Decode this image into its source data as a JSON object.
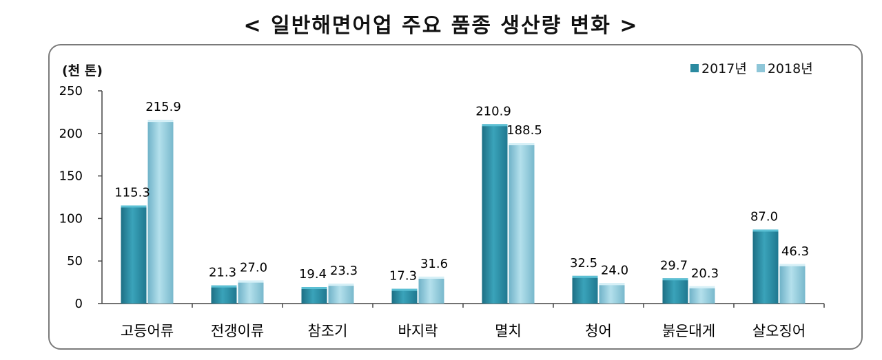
{
  "chart_data": {
    "type": "bar",
    "title": "< 일반해면어업 주요 품종 생산량 변화 >",
    "ylabel": "(천 톤)",
    "xlabel": "",
    "ylim": [
      0,
      250
    ],
    "yticks": [
      0,
      50,
      100,
      150,
      200,
      250
    ],
    "categories": [
      "고등어류",
      "전갱이류",
      "참조기",
      "바지락",
      "멸치",
      "청어",
      "붉은대게",
      "살오징어"
    ],
    "series": [
      {
        "name": "2017년",
        "color": "#2a8aa0",
        "values": [
          115.3,
          21.3,
          19.4,
          17.3,
          210.9,
          32.5,
          29.7,
          87.0
        ],
        "labels": [
          "115.3",
          "21.3",
          "19.4",
          "17.3",
          "210.9",
          "32.5",
          "29.7",
          "87.0"
        ]
      },
      {
        "name": "2018년",
        "color": "#8ec6d8",
        "values": [
          215.9,
          27.0,
          23.3,
          31.6,
          188.5,
          24.0,
          20.3,
          46.3
        ],
        "labels": [
          "215.9",
          "27.0",
          "23.3",
          "31.6",
          "188.5",
          "24.0",
          "20.3",
          "46.3"
        ]
      }
    ],
    "legend_position": "top-right",
    "grid": false
  }
}
